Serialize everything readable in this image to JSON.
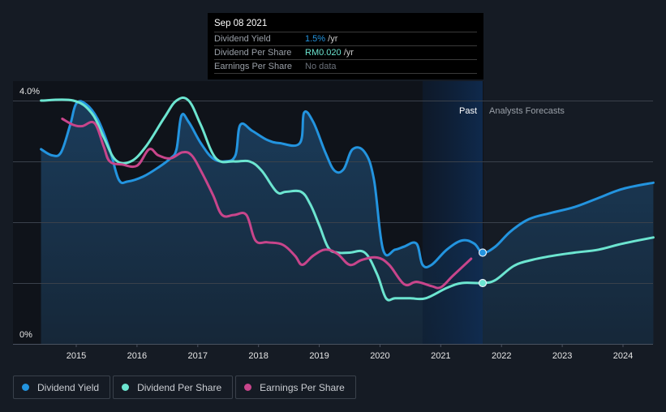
{
  "tooltip": {
    "date": "Sep 08 2021",
    "rows": [
      {
        "label": "Dividend Yield",
        "value": "1.5%",
        "unit": " /yr",
        "color": "#2394df"
      },
      {
        "label": "Dividend Per Share",
        "value": "RM0.020",
        "unit": " /yr",
        "color": "#6ce5d0"
      },
      {
        "label": "Earnings Per Share",
        "value": "No data",
        "unit": "",
        "color": "#6b717a"
      }
    ]
  },
  "regions": {
    "past_label": "Past",
    "forecast_label": "Analysts Forecasts",
    "past_highlight_start": 2020.7,
    "forecast_start": 2021.69
  },
  "legend": [
    {
      "label": "Dividend Yield",
      "color": "#2394df"
    },
    {
      "label": "Dividend Per Share",
      "color": "#6ce5d0"
    },
    {
      "label": "Earnings Per Share",
      "color": "#c8458b"
    }
  ],
  "chart_data": {
    "type": "line",
    "title": "",
    "xlabel": "",
    "ylabel": "",
    "x_ticks": [
      "2015",
      "2016",
      "2017",
      "2018",
      "2019",
      "2020",
      "2021",
      "2022",
      "2023",
      "2024"
    ],
    "y_tick_labels": [
      "0%",
      "4.0%"
    ],
    "xlim": [
      2014.4,
      2024.5
    ],
    "ylim": [
      0,
      4.0
    ],
    "grid": true,
    "legend_position": "bottom-left",
    "series": [
      {
        "name": "Dividend Yield",
        "color": "#2394df",
        "unit": "%",
        "filled": true,
        "points": [
          [
            2014.42,
            3.2
          ],
          [
            2014.6,
            3.1
          ],
          [
            2014.75,
            3.15
          ],
          [
            2014.9,
            3.6
          ],
          [
            2015.0,
            3.95
          ],
          [
            2015.15,
            3.95
          ],
          [
            2015.35,
            3.7
          ],
          [
            2015.55,
            3.2
          ],
          [
            2015.7,
            2.7
          ],
          [
            2015.85,
            2.67
          ],
          [
            2016.1,
            2.75
          ],
          [
            2016.35,
            2.9
          ],
          [
            2016.55,
            3.05
          ],
          [
            2016.65,
            3.2
          ],
          [
            2016.73,
            3.75
          ],
          [
            2016.85,
            3.65
          ],
          [
            2017.05,
            3.3
          ],
          [
            2017.25,
            3.05
          ],
          [
            2017.45,
            3.0
          ],
          [
            2017.62,
            3.1
          ],
          [
            2017.7,
            3.6
          ],
          [
            2017.9,
            3.5
          ],
          [
            2018.15,
            3.35
          ],
          [
            2018.35,
            3.3
          ],
          [
            2018.68,
            3.3
          ],
          [
            2018.75,
            3.8
          ],
          [
            2018.9,
            3.65
          ],
          [
            2019.1,
            3.15
          ],
          [
            2019.25,
            2.85
          ],
          [
            2019.4,
            2.87
          ],
          [
            2019.55,
            3.2
          ],
          [
            2019.75,
            3.15
          ],
          [
            2019.9,
            2.7
          ],
          [
            2020.05,
            1.55
          ],
          [
            2020.25,
            1.55
          ],
          [
            2020.4,
            1.6
          ],
          [
            2020.6,
            1.65
          ],
          [
            2020.7,
            1.3
          ],
          [
            2020.85,
            1.3
          ],
          [
            2021.1,
            1.55
          ],
          [
            2021.35,
            1.7
          ],
          [
            2021.55,
            1.65
          ],
          [
            2021.69,
            1.5
          ],
          [
            2021.9,
            1.6
          ],
          [
            2022.15,
            1.85
          ],
          [
            2022.45,
            2.05
          ],
          [
            2022.8,
            2.15
          ],
          [
            2023.2,
            2.25
          ],
          [
            2023.6,
            2.4
          ],
          [
            2024.0,
            2.55
          ],
          [
            2024.5,
            2.65
          ]
        ]
      },
      {
        "name": "Dividend Per Share",
        "color": "#6ce5d0",
        "unit": "RM",
        "filled": false,
        "points": [
          [
            2014.42,
            4.0
          ],
          [
            2014.95,
            4.0
          ],
          [
            2015.25,
            3.8
          ],
          [
            2015.45,
            3.4
          ],
          [
            2015.65,
            3.02
          ],
          [
            2015.9,
            3.0
          ],
          [
            2016.15,
            3.25
          ],
          [
            2016.45,
            3.72
          ],
          [
            2016.65,
            4.0
          ],
          [
            2016.85,
            4.0
          ],
          [
            2017.05,
            3.6
          ],
          [
            2017.3,
            3.05
          ],
          [
            2017.6,
            3.0
          ],
          [
            2017.85,
            3.0
          ],
          [
            2018.05,
            2.85
          ],
          [
            2018.3,
            2.5
          ],
          [
            2018.45,
            2.5
          ],
          [
            2018.7,
            2.5
          ],
          [
            2018.85,
            2.3
          ],
          [
            2019.0,
            1.95
          ],
          [
            2019.15,
            1.58
          ],
          [
            2019.3,
            1.5
          ],
          [
            2019.5,
            1.5
          ],
          [
            2019.75,
            1.5
          ],
          [
            2019.95,
            1.15
          ],
          [
            2020.1,
            0.75
          ],
          [
            2020.25,
            0.75
          ],
          [
            2020.5,
            0.75
          ],
          [
            2020.75,
            0.75
          ],
          [
            2021.1,
            0.92
          ],
          [
            2021.35,
            1.0
          ],
          [
            2021.69,
            1.0
          ],
          [
            2021.9,
            1.05
          ],
          [
            2022.2,
            1.28
          ],
          [
            2022.5,
            1.38
          ],
          [
            2022.85,
            1.45
          ],
          [
            2023.2,
            1.5
          ],
          [
            2023.6,
            1.55
          ],
          [
            2024.0,
            1.65
          ],
          [
            2024.5,
            1.75
          ]
        ]
      },
      {
        "name": "Earnings Per Share",
        "color": "#c8458b",
        "unit": "",
        "filled": false,
        "points": [
          [
            2014.77,
            3.7
          ],
          [
            2014.95,
            3.6
          ],
          [
            2015.1,
            3.58
          ],
          [
            2015.3,
            3.63
          ],
          [
            2015.45,
            3.25
          ],
          [
            2015.55,
            3.0
          ],
          [
            2015.75,
            2.95
          ],
          [
            2016.0,
            2.93
          ],
          [
            2016.2,
            3.2
          ],
          [
            2016.35,
            3.1
          ],
          [
            2016.55,
            3.05
          ],
          [
            2016.75,
            3.15
          ],
          [
            2016.9,
            3.1
          ],
          [
            2017.05,
            2.85
          ],
          [
            2017.25,
            2.45
          ],
          [
            2017.4,
            2.12
          ],
          [
            2017.6,
            2.12
          ],
          [
            2017.8,
            2.12
          ],
          [
            2017.95,
            1.7
          ],
          [
            2018.15,
            1.67
          ],
          [
            2018.4,
            1.63
          ],
          [
            2018.6,
            1.45
          ],
          [
            2018.72,
            1.3
          ],
          [
            2018.9,
            1.45
          ],
          [
            2019.1,
            1.55
          ],
          [
            2019.3,
            1.48
          ],
          [
            2019.5,
            1.3
          ],
          [
            2019.7,
            1.38
          ],
          [
            2019.95,
            1.42
          ],
          [
            2020.15,
            1.3
          ],
          [
            2020.4,
            0.98
          ],
          [
            2020.6,
            1.02
          ],
          [
            2020.85,
            0.95
          ],
          [
            2021.0,
            0.93
          ],
          [
            2021.2,
            1.12
          ],
          [
            2021.5,
            1.4
          ]
        ]
      }
    ],
    "highlighted_points": [
      {
        "series": "Dividend Yield",
        "x": 2021.69,
        "y": 1.5
      },
      {
        "series": "Dividend Per Share",
        "x": 2021.69,
        "y": 1.0
      }
    ]
  }
}
